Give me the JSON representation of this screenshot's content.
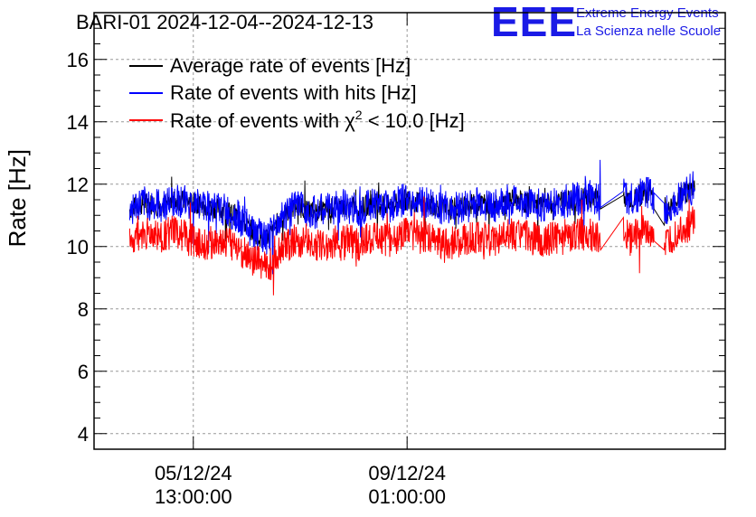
{
  "logo": {
    "mark": "EEE",
    "line1": "Extreme Energy Events",
    "line2": "La Scienza nelle Scuole"
  },
  "colors": {
    "average": "#000000",
    "hits": "#0000ff",
    "chi2": "#ff0000",
    "logo": "#1a1ae6",
    "grid": "#999999"
  },
  "chart_data": {
    "type": "line",
    "title": "BARI-01 2024-12-04--2024-12-13",
    "ylabel": "Rate [Hz]",
    "xlabel": "",
    "ylim": [
      3.5,
      17.5
    ],
    "yticks": [
      4,
      6,
      8,
      10,
      12,
      14,
      16
    ],
    "yticklabels": [
      "4",
      "6",
      "8",
      "10",
      "12",
      "14",
      "16"
    ],
    "xlim": [
      "2024-12-03T22:00:00",
      "2024-12-14T06:00:00"
    ],
    "xticks": [
      {
        "date": "05/12/24",
        "time": "13:00:00",
        "t": "2024-12-05T13:00:00"
      },
      {
        "date": "09/12/24",
        "time": "01:00:00",
        "t": "2024-12-09T01:00:00"
      }
    ],
    "grid": true,
    "legend_position": "top-left",
    "legend": [
      {
        "text": "Average rate of events [Hz]",
        "color": "#000000"
      },
      {
        "text": "Rate of events with hits [Hz]",
        "color": "#0000ff"
      },
      {
        "text_before": "Rate of events with ",
        "chi": "χ",
        "sup": "2",
        "text_after": " < 10.0 [Hz]",
        "color": "#ff0000"
      }
    ],
    "series": [
      {
        "name": "Rate of events with hits [Hz]",
        "color": "#0000ff",
        "x": [
          "2024-12-04T12:00",
          "2024-12-04T18:00",
          "2024-12-05T00:00",
          "2024-12-05T06:00",
          "2024-12-05T12:00",
          "2024-12-05T18:00",
          "2024-12-06T00:00",
          "2024-12-06T06:00",
          "2024-12-06T12:00",
          "2024-12-06T18:00",
          "2024-12-07T00:00",
          "2024-12-07T06:00",
          "2024-12-07T12:00",
          "2024-12-07T18:00",
          "2024-12-08T00:00",
          "2024-12-08T06:00",
          "2024-12-08T12:00",
          "2024-12-08T18:00",
          "2024-12-09T00:00",
          "2024-12-09T06:00",
          "2024-12-09T12:00",
          "2024-12-09T18:00",
          "2024-12-10T00:00",
          "2024-12-10T06:00",
          "2024-12-10T12:00",
          "2024-12-10T18:00",
          "2024-12-11T00:00",
          "2024-12-11T06:00",
          "2024-12-11T12:00",
          "2024-12-11T18:00",
          "2024-12-12T00:00",
          "2024-12-12T06:00",
          "2024-12-12T12:00",
          "2024-12-12T18:00",
          "2024-12-13T00:00",
          "2024-12-13T06:00",
          "2024-12-13T12:00",
          "2024-12-13T18:00"
        ],
        "y": [
          11.2,
          11.4,
          11.3,
          11.5,
          11.4,
          11.3,
          11.2,
          11.0,
          10.5,
          10.2,
          11.0,
          11.3,
          11.1,
          11.2,
          11.3,
          11.2,
          11.4,
          11.3,
          11.5,
          11.4,
          11.3,
          11.2,
          11.3,
          11.4,
          11.3,
          11.5,
          11.4,
          11.3,
          11.4,
          11.5,
          11.6,
          11.5,
          11.7,
          11.5,
          11.8,
          11.0,
          11.6,
          11.9
        ]
      },
      {
        "name": "Rate of events with χ2 < 10.0 [Hz]",
        "color": "#ff0000",
        "x": [
          "2024-12-04T12:00",
          "2024-12-04T18:00",
          "2024-12-05T00:00",
          "2024-12-05T06:00",
          "2024-12-05T12:00",
          "2024-12-05T18:00",
          "2024-12-06T00:00",
          "2024-12-06T06:00",
          "2024-12-06T12:00",
          "2024-12-06T18:00",
          "2024-12-07T00:00",
          "2024-12-07T06:00",
          "2024-12-07T12:00",
          "2024-12-07T18:00",
          "2024-12-08T00:00",
          "2024-12-08T06:00",
          "2024-12-08T12:00",
          "2024-12-08T18:00",
          "2024-12-09T00:00",
          "2024-12-09T06:00",
          "2024-12-09T12:00",
          "2024-12-09T18:00",
          "2024-12-10T00:00",
          "2024-12-10T06:00",
          "2024-12-10T12:00",
          "2024-12-10T18:00",
          "2024-12-11T00:00",
          "2024-12-11T06:00",
          "2024-12-11T12:00",
          "2024-12-11T18:00",
          "2024-12-12T00:00",
          "2024-12-12T06:00",
          "2024-12-12T12:00",
          "2024-12-12T18:00",
          "2024-12-13T00:00",
          "2024-12-13T06:00",
          "2024-12-13T12:00",
          "2024-12-13T18:00"
        ],
        "y": [
          10.2,
          10.4,
          10.3,
          10.5,
          10.2,
          10.1,
          10.2,
          10.0,
          9.6,
          9.3,
          10.0,
          10.2,
          10.0,
          10.1,
          10.2,
          10.1,
          10.3,
          10.2,
          10.4,
          10.3,
          10.2,
          10.1,
          10.2,
          10.3,
          10.2,
          10.4,
          10.3,
          10.2,
          10.3,
          10.4,
          10.4,
          10.3,
          10.5,
          10.3,
          10.6,
          9.9,
          10.5,
          10.8
        ]
      }
    ]
  }
}
